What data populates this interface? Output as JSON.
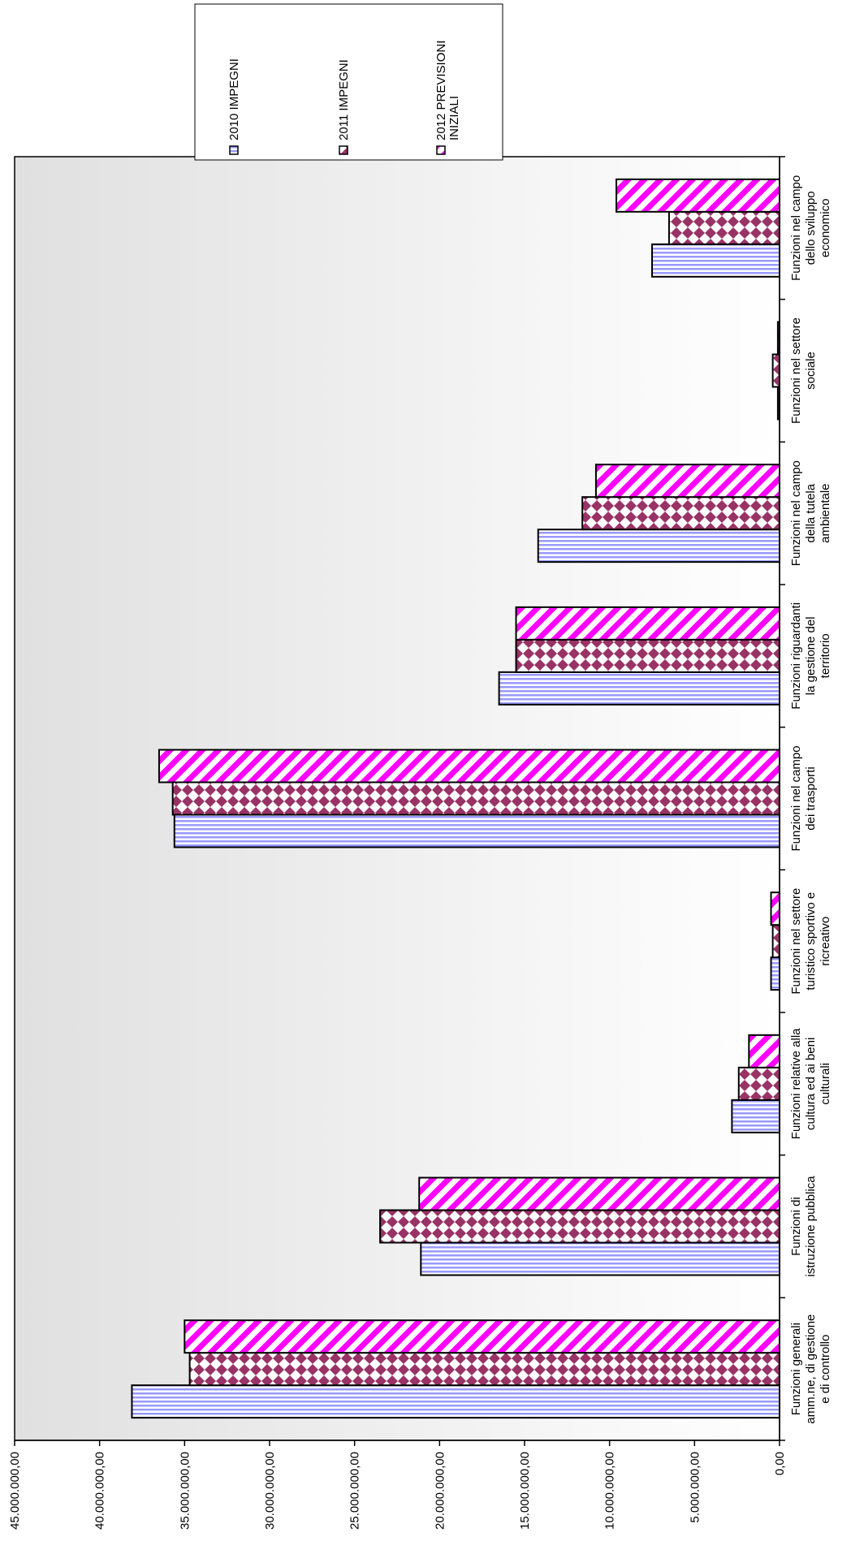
{
  "chart_data": {
    "type": "bar",
    "orientation": "rotated-90-clockwise",
    "categories": [
      [
        "Funzioni generali",
        "amm.ne, di gestione",
        "e di controllo"
      ],
      [
        "Funzioni di",
        "istruzione pubblica"
      ],
      [
        "Funzioni relative alla",
        "cultura ed ai beni",
        "culturali"
      ],
      [
        "Funzioni nel settore",
        "turistico sportivo e",
        "ricreativo"
      ],
      [
        "Funzioni nel campo",
        "dei trasporti"
      ],
      [
        "Funzioni riguardanti",
        "la gestione del",
        "territorio"
      ],
      [
        "Funzioni nel campo",
        "della tutela",
        "ambientale"
      ],
      [
        "Funzioni nel settore",
        "sociale"
      ],
      [
        "Funzioni nel campo",
        "dello sviluppo",
        "economico"
      ]
    ],
    "series": [
      {
        "name": "2010  IMPEGNI",
        "pattern": "vertical-stripes",
        "color": "#9999ff",
        "values": [
          38100000,
          21100000,
          2800000,
          500000,
          35600000,
          16500000,
          14200000,
          100000,
          7500000
        ]
      },
      {
        "name": "2011  IMPEGNI",
        "pattern": "diamond-checker",
        "color": "#993366",
        "values": [
          34700000,
          23500000,
          2400000,
          400000,
          35700000,
          15500000,
          11600000,
          400000,
          6500000
        ]
      },
      {
        "name": "2012   PREVISIONI INIZIALI",
        "legend_lines": [
          "2012   PREVISIONI",
          "INIZIALI"
        ],
        "pattern": "diagonal-stripes",
        "color": "#ff00ff",
        "values": [
          35000000,
          21200000,
          1800000,
          500000,
          36500000,
          15500000,
          10800000,
          100000,
          9600000
        ]
      }
    ],
    "yticks": [
      "0,00",
      "5.000.000,00",
      "10.000.000,00",
      "15.000.000,00",
      "20.000.000,00",
      "25.000.000,00",
      "30.000.000,00",
      "35.000.000,00",
      "40.000.000,00",
      "45.000.000,00"
    ],
    "ylim": [
      0,
      45000000
    ],
    "legend_position": "top-right (rotated)"
  }
}
